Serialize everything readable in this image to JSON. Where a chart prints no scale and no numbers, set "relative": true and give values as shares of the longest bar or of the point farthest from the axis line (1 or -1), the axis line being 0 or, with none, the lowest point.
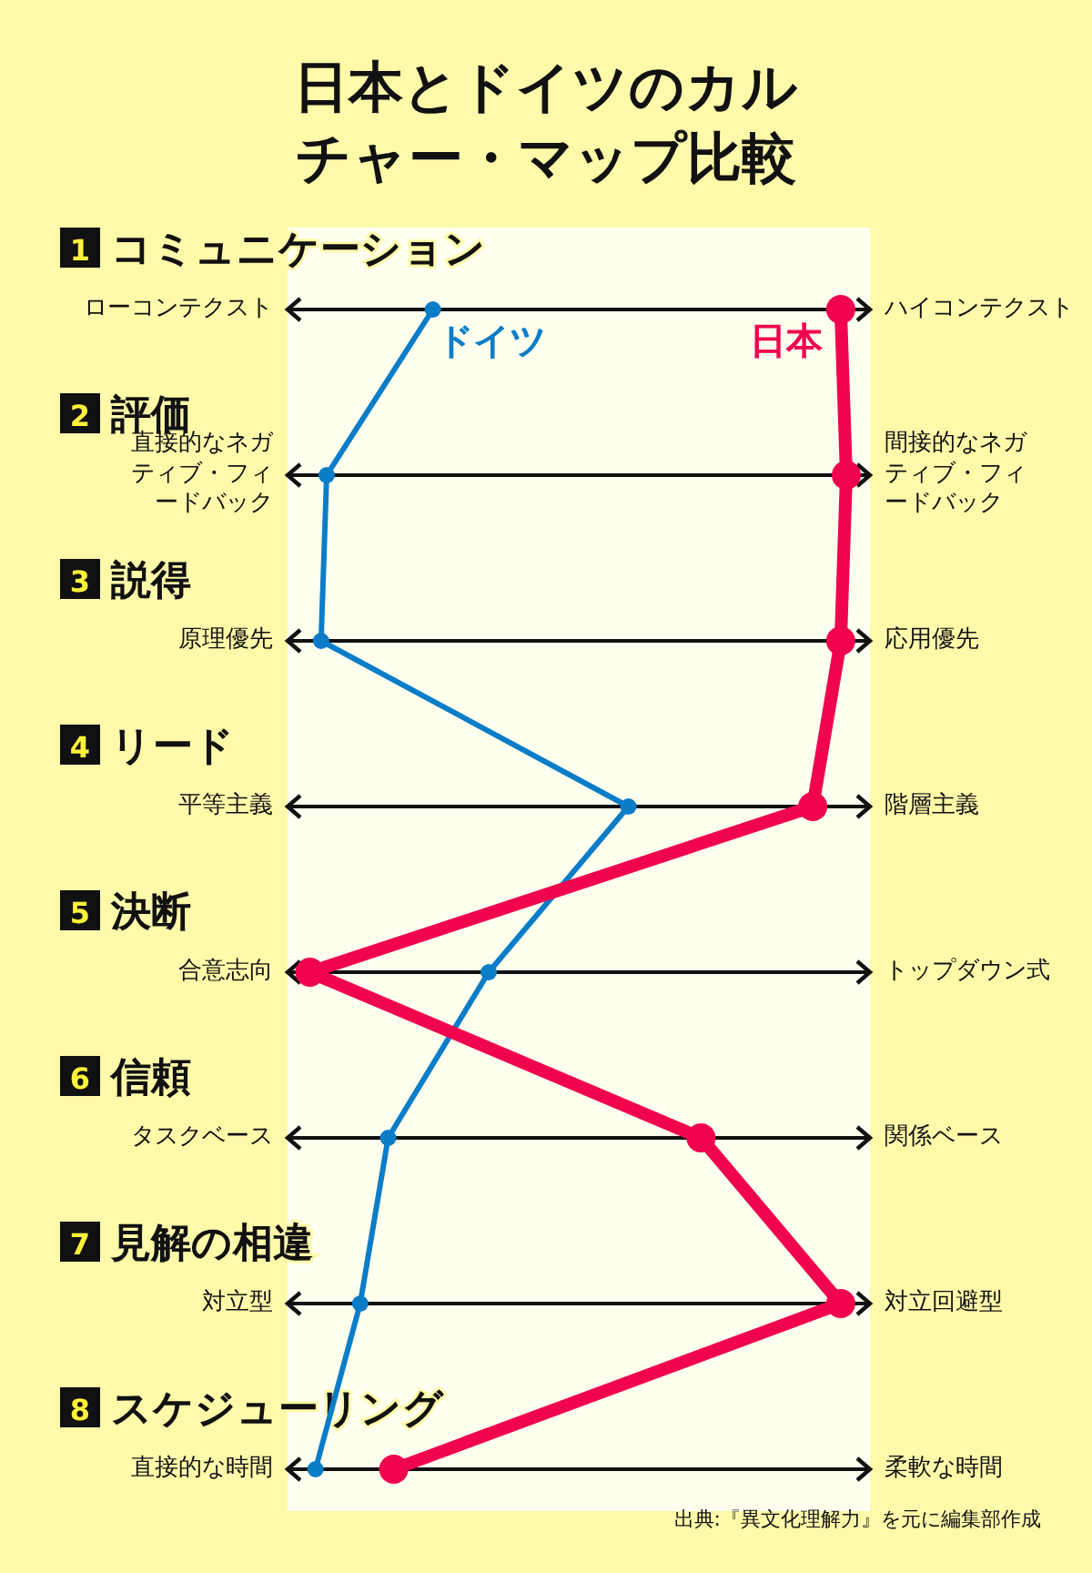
{
  "chart_data": {
    "type": "line",
    "orientation": "horizontal",
    "relative": true,
    "marker": "circle",
    "line_style": "solid",
    "title": "日本とドイツのカルチャー・マップ比較",
    "grid": "y",
    "categories": [
      "1 コミュニケーション",
      "2 評価",
      "3 説得",
      "4 リード",
      "5 決断",
      "6 信頼",
      "7 見解の相違",
      "8 スケジューリング"
    ],
    "series": [
      {
        "name": "ドイツ",
        "color": "#0b7dc8",
        "values": [
          0.26,
          0.07,
          0.06,
          0.61,
          0.36,
          0.18,
          0.13,
          0.05
        ]
      },
      {
        "name": "日本",
        "color": "#f0044e",
        "values": [
          0.99,
          1.0,
          0.99,
          0.94,
          0.04,
          0.74,
          0.99,
          0.19
        ]
      }
    ],
    "annotations": [
      "ローコンテクスト",
      "直接的なネガティブ・フィードバック",
      "原理優先",
      "平等主義",
      "合意志向",
      "タスクベース",
      "対立型",
      "直接的な時間",
      "ハイコンテクスト",
      "間接的なネガティブ・フィードバック",
      "応用優先",
      "階層主義",
      "トップダウン式",
      "関係ベース",
      "対立回避型",
      "柔軟な時間",
      "出典:『異文化理解力』を元に編集部作成"
    ]
  }
}
